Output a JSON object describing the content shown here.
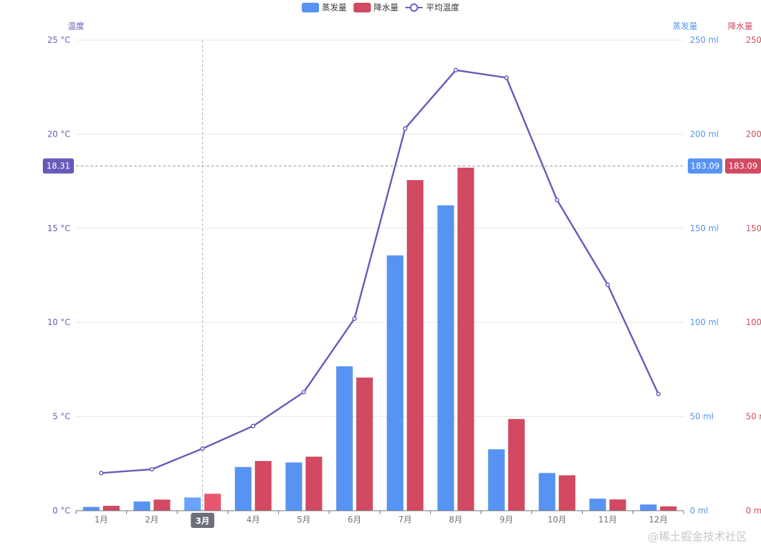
{
  "chart_data": {
    "type": "bar",
    "categories": [
      "1月",
      "2月",
      "3月",
      "4月",
      "5月",
      "6月",
      "7月",
      "8月",
      "9月",
      "10月",
      "11月",
      "12月"
    ],
    "series": [
      {
        "name": "蒸发量",
        "type": "bar",
        "axis": "蒸发量",
        "color": "#5793f3",
        "values": [
          2.0,
          4.9,
          7.0,
          23.2,
          25.6,
          76.7,
          135.6,
          162.2,
          32.6,
          20.0,
          6.4,
          3.3
        ]
      },
      {
        "name": "降水量",
        "type": "bar",
        "axis": "降水量",
        "color": "#d14a61",
        "values": [
          2.6,
          5.9,
          9.0,
          26.4,
          28.7,
          70.7,
          175.6,
          182.2,
          48.7,
          18.8,
          6.0,
          2.3
        ]
      },
      {
        "name": "平均温度",
        "type": "line",
        "axis": "温度",
        "color": "#675bba",
        "values": [
          2.0,
          2.2,
          3.3,
          4.5,
          6.3,
          10.2,
          20.3,
          23.4,
          23.0,
          16.5,
          12.0,
          6.2
        ]
      }
    ],
    "axes": {
      "温度": {
        "label": "温度",
        "ylim": [
          0,
          25
        ],
        "ticks": [
          "0 °C",
          "5 °C",
          "10 °C",
          "15 °C",
          "20 °C",
          "25 °C"
        ],
        "color": "#675bba"
      },
      "蒸发量": {
        "label": "蒸发量",
        "ylim": [
          0,
          250
        ],
        "ticks": [
          "0 ml",
          "50 ml",
          "100 ml",
          "150 ml",
          "200 ml",
          "250 ml"
        ],
        "color": "#5793f3"
      },
      "降水量": {
        "label": "降水量",
        "ylim": [
          0,
          250
        ],
        "ticks": [
          "0 m",
          "50 r",
          "100",
          "150",
          "200",
          "250"
        ],
        "color": "#d14a61"
      }
    },
    "legend": {
      "position": "top-center",
      "items": [
        "蒸发量",
        "降水量",
        "平均温度"
      ]
    },
    "grid": true,
    "tooltip": {
      "category": "3月",
      "crosshair": {
        "温度": "18.31",
        "蒸发量": "183.09",
        "降水量": "183.09"
      }
    }
  },
  "watermark": "@稀土掘金技术社区"
}
